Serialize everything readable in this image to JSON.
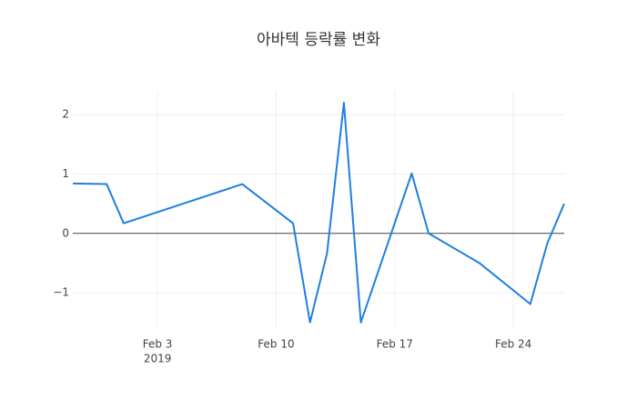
{
  "chart_data": {
    "type": "line",
    "title": "아바텍 등락률 변화",
    "x": [
      "2019-01-29",
      "2019-01-31",
      "2019-02-01",
      "2019-02-08",
      "2019-02-11",
      "2019-02-12",
      "2019-02-13",
      "2019-02-14",
      "2019-02-15",
      "2019-02-18",
      "2019-02-19",
      "2019-02-22",
      "2019-02-25",
      "2019-02-26",
      "2019-02-27"
    ],
    "series": [
      {
        "name": "등락률",
        "color": "#1f7fe0",
        "values": [
          0.84,
          0.83,
          0.17,
          0.83,
          0.17,
          -1.5,
          -0.34,
          2.2,
          -1.5,
          1.01,
          0,
          -0.5,
          -1.19,
          -0.17,
          0.5
        ]
      }
    ],
    "xlim": [
      "2019-01-29",
      "2019-02-27"
    ],
    "xticks": [
      {
        "value": "2019-02-03",
        "label": "Feb 3"
      },
      {
        "value": "2019-02-10",
        "label": "Feb 10"
      },
      {
        "value": "2019-02-17",
        "label": "Feb 17"
      },
      {
        "value": "2019-02-24",
        "label": "Feb 24"
      }
    ],
    "x_year_label": "2019",
    "ylim": [
      -1.58,
      2.4
    ],
    "yticks": [
      {
        "value": -1,
        "label": "−1"
      },
      0,
      1,
      2
    ],
    "grid": true,
    "zero_line": true
  }
}
